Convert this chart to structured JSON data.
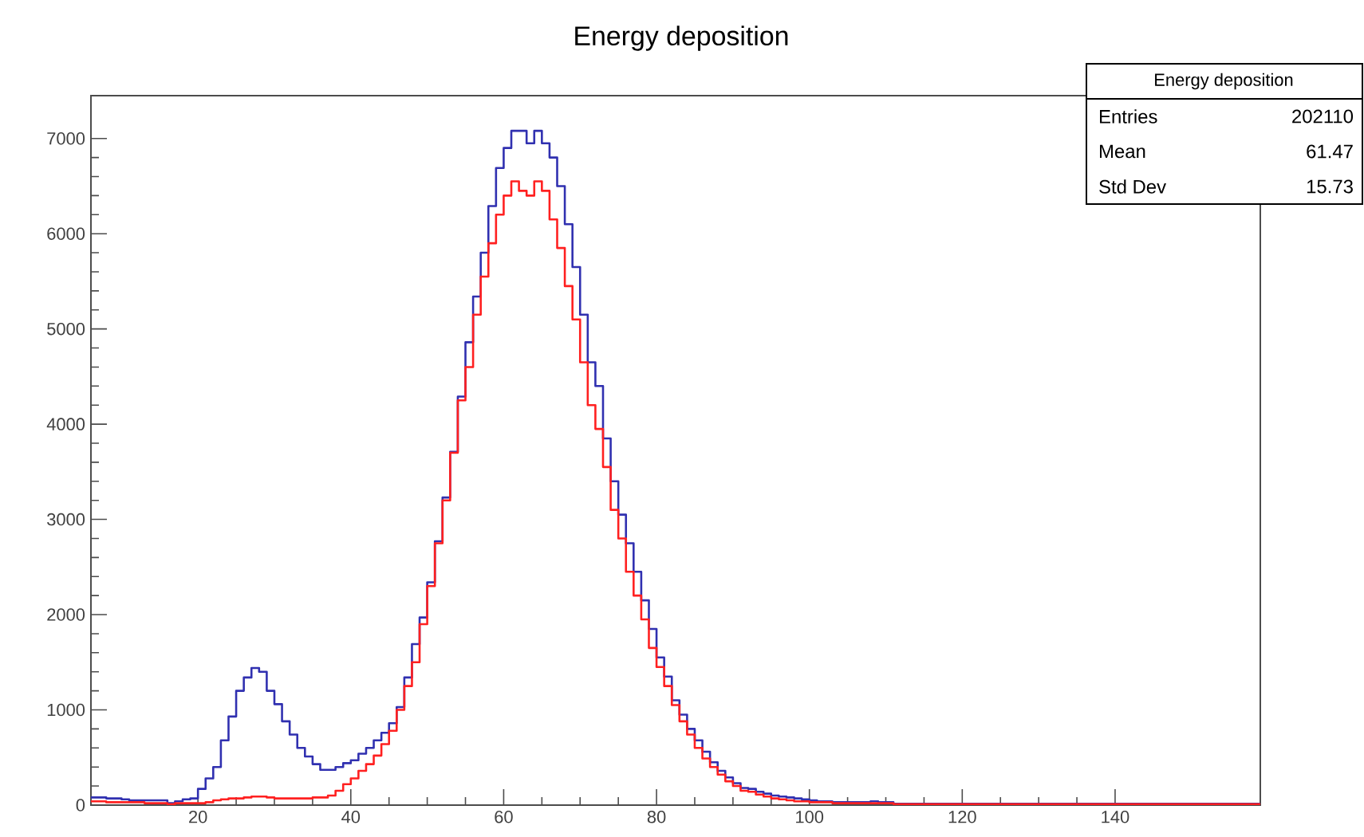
{
  "chart_data": {
    "type": "histogram",
    "title": "Energy deposition",
    "bins": [
      6,
      7,
      8,
      9,
      10,
      11,
      12,
      13,
      14,
      15,
      16,
      17,
      18,
      19,
      20,
      21,
      22,
      23,
      24,
      25,
      26,
      27,
      28,
      29,
      30,
      31,
      32,
      33,
      34,
      35,
      36,
      37,
      38,
      39,
      40,
      41,
      42,
      43,
      44,
      45,
      46,
      47,
      48,
      49,
      50,
      51,
      52,
      53,
      54,
      55,
      56,
      57,
      58,
      59,
      60,
      61,
      62,
      63,
      64,
      65,
      66,
      67,
      68,
      69,
      70,
      71,
      72,
      73,
      74,
      75,
      76,
      77,
      78,
      79,
      80,
      81,
      82,
      83,
      84,
      85,
      86,
      87,
      88,
      89,
      90,
      91,
      92,
      93,
      94,
      95,
      96,
      97,
      98,
      99,
      100,
      101,
      102,
      103,
      104,
      105,
      106,
      107,
      108,
      109,
      110,
      111,
      159
    ],
    "series": [
      {
        "color": "#3030b0",
        "values": [
          80,
          80,
          70,
          70,
          60,
          50,
          50,
          50,
          50,
          50,
          20,
          40,
          60,
          70,
          170,
          280,
          400,
          680,
          930,
          1200,
          1340,
          1440,
          1400,
          1200,
          1060,
          880,
          740,
          600,
          510,
          430,
          370,
          370,
          400,
          440,
          470,
          540,
          600,
          680,
          760,
          860,
          1030,
          1340,
          1690,
          1970,
          2340,
          2770,
          3230,
          3710,
          4290,
          4860,
          5340,
          5800,
          6290,
          6690,
          6900,
          7080,
          7080,
          6950,
          7080,
          6950,
          6800,
          6500,
          6100,
          5650,
          5150,
          4650,
          4400,
          3850,
          3400,
          3050,
          2750,
          2450,
          2150,
          1850,
          1550,
          1350,
          1100,
          950,
          800,
          680,
          560,
          450,
          360,
          290,
          230,
          180,
          170,
          140,
          120,
          100,
          90,
          80,
          70,
          60,
          50,
          40,
          40,
          30,
          30,
          30,
          30,
          30,
          40,
          30,
          30,
          15
        ]
      },
      {
        "color": "#ff2020",
        "values": [
          40,
          40,
          30,
          30,
          30,
          30,
          30,
          20,
          20,
          20,
          10,
          20,
          20,
          20,
          20,
          30,
          50,
          60,
          70,
          70,
          80,
          90,
          90,
          80,
          70,
          70,
          70,
          70,
          70,
          80,
          80,
          100,
          150,
          220,
          280,
          360,
          430,
          520,
          640,
          780,
          1000,
          1250,
          1500,
          1900,
          2300,
          2750,
          3200,
          3700,
          4250,
          4600,
          5150,
          5550,
          5900,
          6200,
          6400,
          6550,
          6450,
          6400,
          6550,
          6450,
          6150,
          5850,
          5450,
          5100,
          4650,
          4200,
          3950,
          3550,
          3100,
          2800,
          2450,
          2200,
          1950,
          1650,
          1450,
          1250,
          1050,
          880,
          740,
          600,
          490,
          400,
          320,
          250,
          200,
          150,
          140,
          110,
          90,
          70,
          60,
          50,
          40,
          40,
          30,
          30,
          30,
          20,
          20,
          20,
          20,
          20,
          20,
          20,
          20,
          10
        ]
      }
    ],
    "xlim": [
      6,
      159
    ],
    "ylim": [
      0,
      7450
    ],
    "xticks": [
      20,
      40,
      60,
      80,
      100,
      120,
      140
    ],
    "yticks": [
      0,
      1000,
      2000,
      3000,
      4000,
      5000,
      6000,
      7000
    ],
    "annotations": [
      "Energy deposition",
      "Entries",
      "202110",
      "Mean",
      "61.47",
      "Std Dev",
      "15.73"
    ]
  }
}
